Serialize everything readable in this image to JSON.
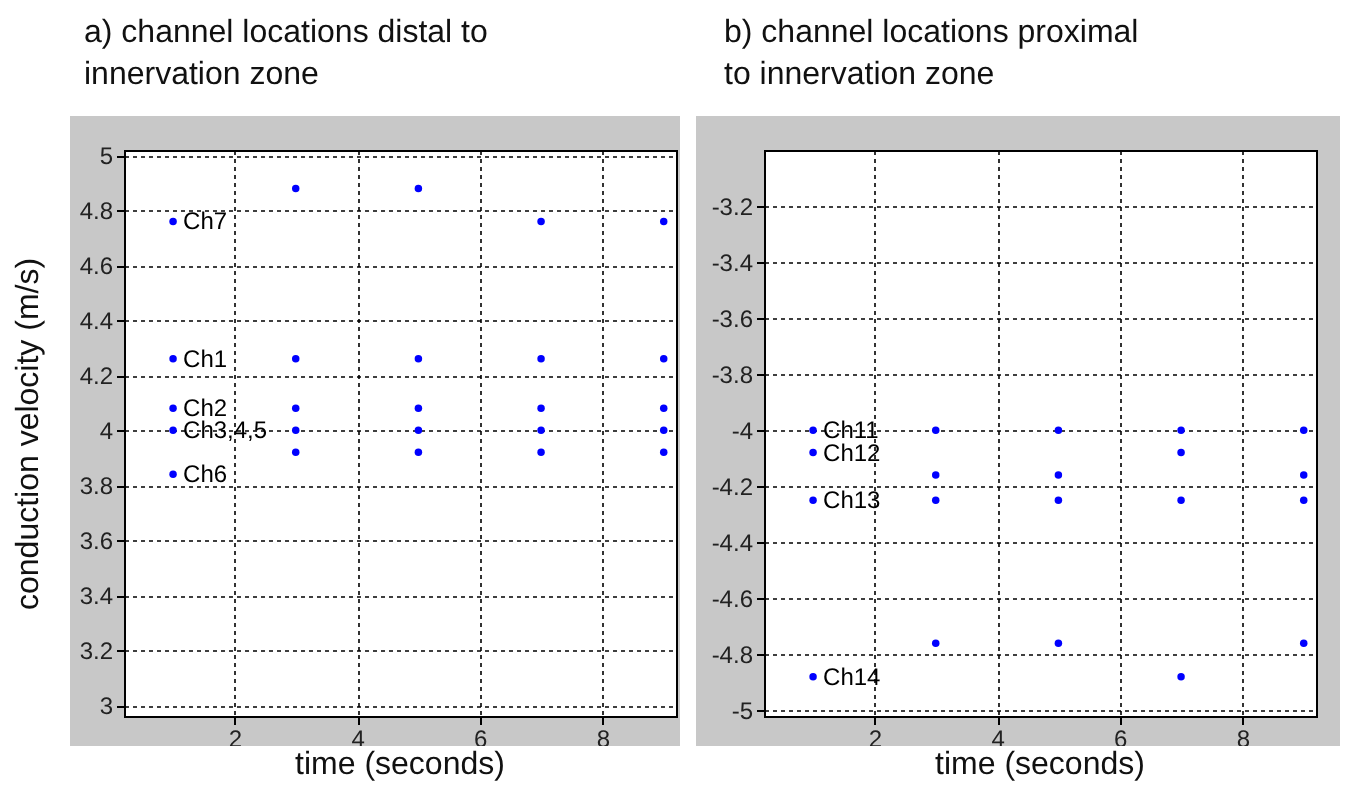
{
  "chart_data": [
    {
      "type": "scatter",
      "title": "a) channel locations distal to\ninnervation zone",
      "xlabel": "time (seconds)",
      "ylabel": "conduction velocity  (m/s)",
      "x": [
        1,
        3,
        5,
        7,
        9
      ],
      "series": [
        {
          "name": "Ch7",
          "color": "#0000ff",
          "values": [
            4.76,
            4.88,
            4.88,
            4.76,
            4.76
          ]
        },
        {
          "name": "Ch1",
          "color": "#0000ff",
          "values": [
            4.26,
            4.26,
            4.26,
            4.26,
            4.26
          ]
        },
        {
          "name": "Ch2",
          "color": "#0000ff",
          "values": [
            4.08,
            4.08,
            4.08,
            4.08,
            4.08
          ]
        },
        {
          "name": "Ch3,4,5",
          "color": "#0000ff",
          "values": [
            4.0,
            4.0,
            4.0,
            4.0,
            4.0
          ]
        },
        {
          "name": "Ch6",
          "color": "#0000ff",
          "values": [
            3.84,
            3.92,
            3.92,
            3.92,
            3.92
          ]
        }
      ],
      "xlim": [
        0.2,
        9.2
      ],
      "xticks": [
        2,
        4,
        6,
        8
      ],
      "ylim": [
        2.96,
        5.02
      ],
      "yticks": [
        3,
        3.2,
        3.4,
        3.6,
        3.8,
        4,
        4.2,
        4.4,
        4.6,
        4.8,
        5
      ],
      "grid": true,
      "marker": "circle"
    },
    {
      "type": "scatter",
      "title": "b) channel locations proximal\nto innervation zone",
      "xlabel": "time (seconds)",
      "x": [
        1,
        3,
        5,
        7,
        9
      ],
      "series": [
        {
          "name": "Ch11",
          "color": "#0000ff",
          "values": [
            -4.0,
            -4.0,
            -4.0,
            -4.0,
            -4.0
          ]
        },
        {
          "name": "Ch12",
          "color": "#0000ff",
          "values": [
            -4.08,
            -4.16,
            -4.16,
            -4.08,
            -4.16
          ]
        },
        {
          "name": "Ch13",
          "color": "#0000ff",
          "values": [
            -4.25,
            -4.25,
            -4.25,
            -4.25,
            -4.25
          ]
        },
        {
          "name": "Ch14",
          "color": "#0000ff",
          "values": [
            -4.88,
            -4.76,
            -4.76,
            -4.88,
            -4.76
          ]
        }
      ],
      "xlim": [
        0.2,
        9.2
      ],
      "xticks": [
        2,
        4,
        6,
        8
      ],
      "ylim": [
        -5.02,
        -3.0
      ],
      "yticks": [
        -5,
        -4.8,
        -4.6,
        -4.4,
        -4.2,
        -4,
        -3.8,
        -3.6,
        -3.4,
        -3.2
      ],
      "grid": true,
      "marker": "circle"
    }
  ]
}
